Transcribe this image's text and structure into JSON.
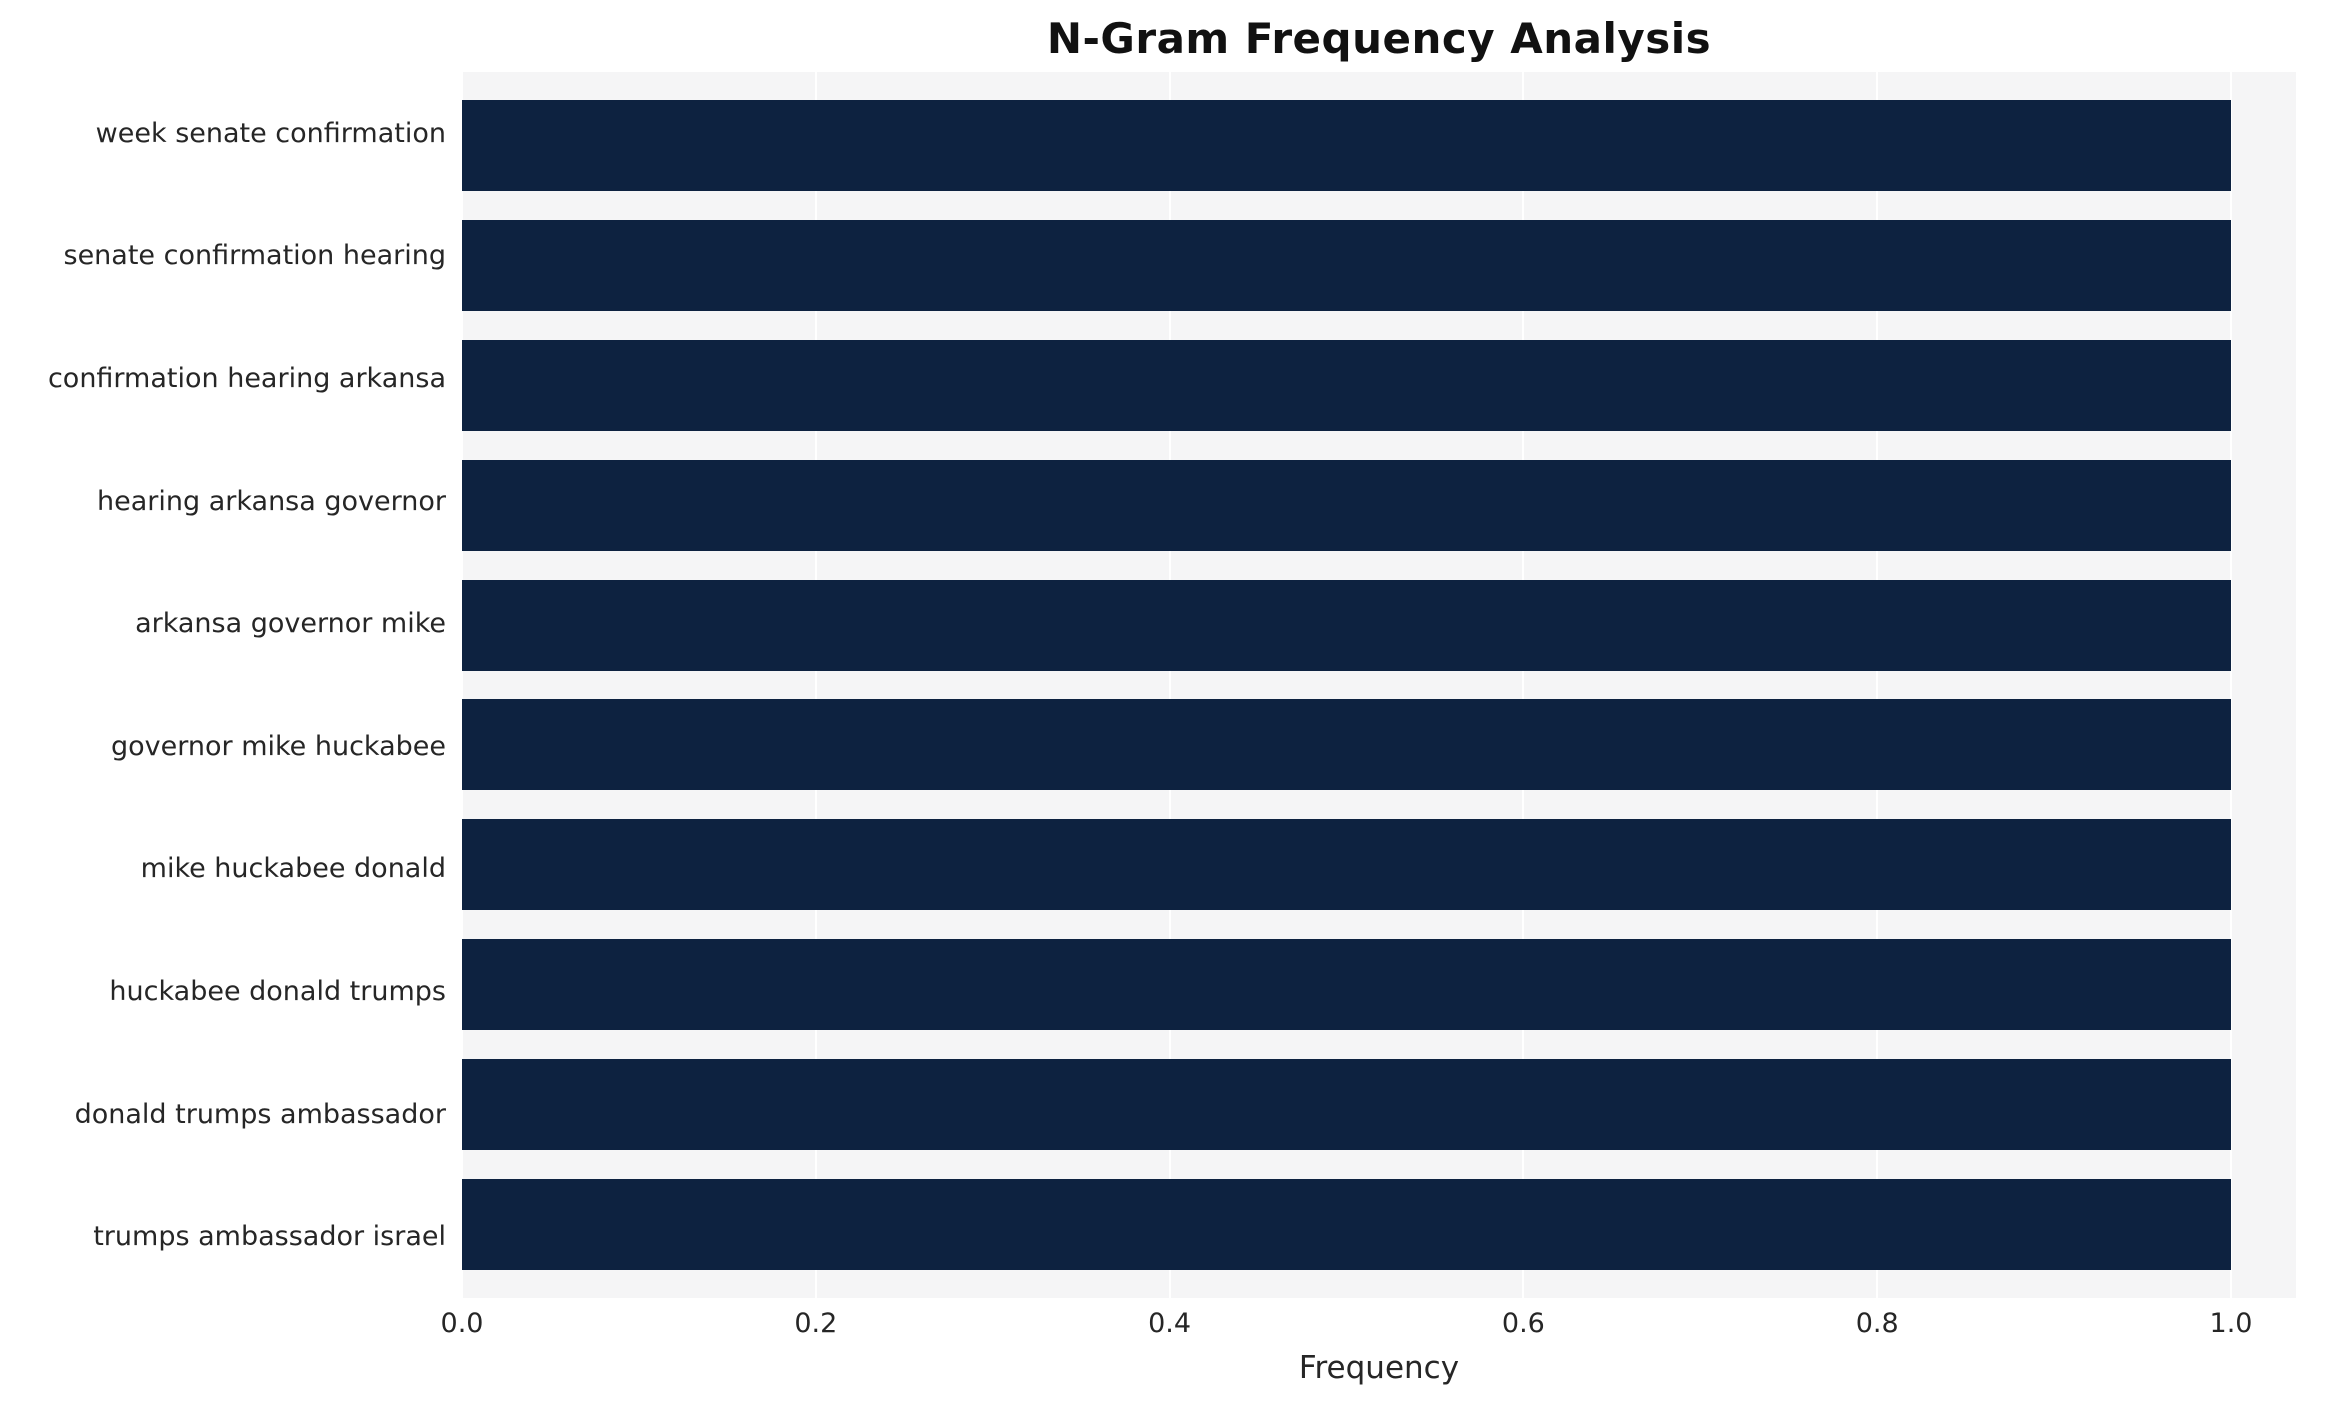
{
  "chart_data": {
    "type": "bar",
    "orientation": "horizontal",
    "title": "N-Gram Frequency Analysis",
    "xlabel": "Frequency",
    "ylabel": "",
    "xlim": [
      0.0,
      1.0
    ],
    "xticks": [
      0.0,
      0.2,
      0.4,
      0.6,
      0.8,
      1.0
    ],
    "xtick_labels": [
      "0.0",
      "0.2",
      "0.4",
      "0.6",
      "0.8",
      "1.0"
    ],
    "grid": true,
    "legend": false,
    "bar_color": "#0d2240",
    "plot_background": "#f5f5f6",
    "categories": [
      "week senate confirmation",
      "senate confirmation hearing",
      "confirmation hearing arkansa",
      "hearing arkansa governor",
      "arkansa governor mike",
      "governor mike huckabee",
      "mike huckabee donald",
      "huckabee donald trumps",
      "donald trumps ambassador",
      "trumps ambassador israel"
    ],
    "values": [
      1.0,
      1.0,
      1.0,
      1.0,
      1.0,
      1.0,
      1.0,
      1.0,
      1.0,
      1.0
    ]
  }
}
